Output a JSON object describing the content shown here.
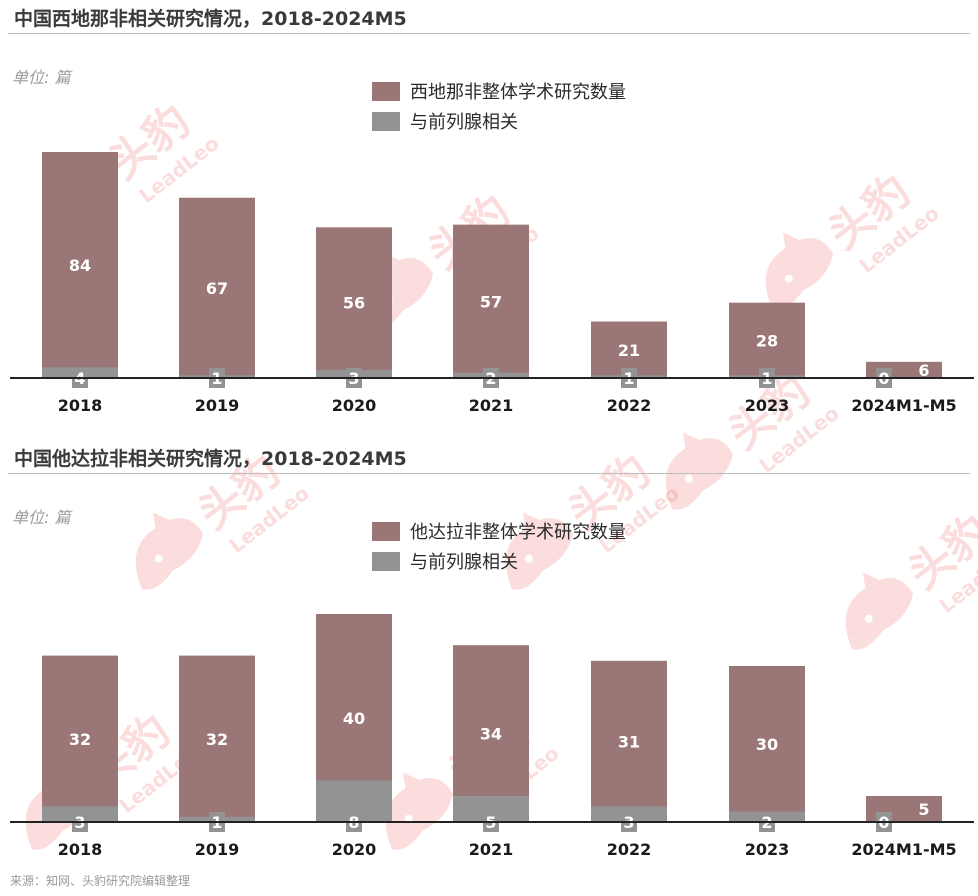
{
  "source_note": "来源：知网、头豹研究院编辑整理",
  "watermark": {
    "brand_cn": "头豹",
    "brand_en": "LeadLeo",
    "logo_icon": "leopard-head-icon"
  },
  "colors": {
    "total": "#9b7677",
    "prostate": "#939393",
    "axis": "#222222",
    "title": "#3a3a3a"
  },
  "chart_data": [
    {
      "type": "bar",
      "title": "中国西地那非相关研究情况，2018-2024M5",
      "unit": "单位:   篇",
      "categories": [
        "2018",
        "2019",
        "2020",
        "2021",
        "2022",
        "2023",
        "2024M1-M5"
      ],
      "series": [
        {
          "name": "西地那非整体学术研究数量",
          "values": [
            84,
            67,
            56,
            57,
            21,
            28,
            6
          ]
        },
        {
          "name": "与前列腺相关",
          "values": [
            4,
            1,
            3,
            2,
            1,
            1,
            0
          ]
        }
      ],
      "ylim": [
        0,
        90
      ],
      "legend": "top-center",
      "grid": false
    },
    {
      "type": "bar",
      "title": "中国他达拉非相关研究情况，2018-2024M5",
      "unit": "单位:   篇",
      "categories": [
        "2018",
        "2019",
        "2020",
        "2021",
        "2022",
        "2023",
        "2024M1-M5"
      ],
      "series": [
        {
          "name": "他达拉非整体学术研究数量",
          "values": [
            32,
            32,
            40,
            34,
            31,
            30,
            5
          ]
        },
        {
          "name": "与前列腺相关",
          "values": [
            3,
            1,
            8,
            5,
            3,
            2,
            0
          ]
        }
      ],
      "ylim": [
        0,
        48
      ],
      "legend": "top-center",
      "grid": false
    }
  ]
}
